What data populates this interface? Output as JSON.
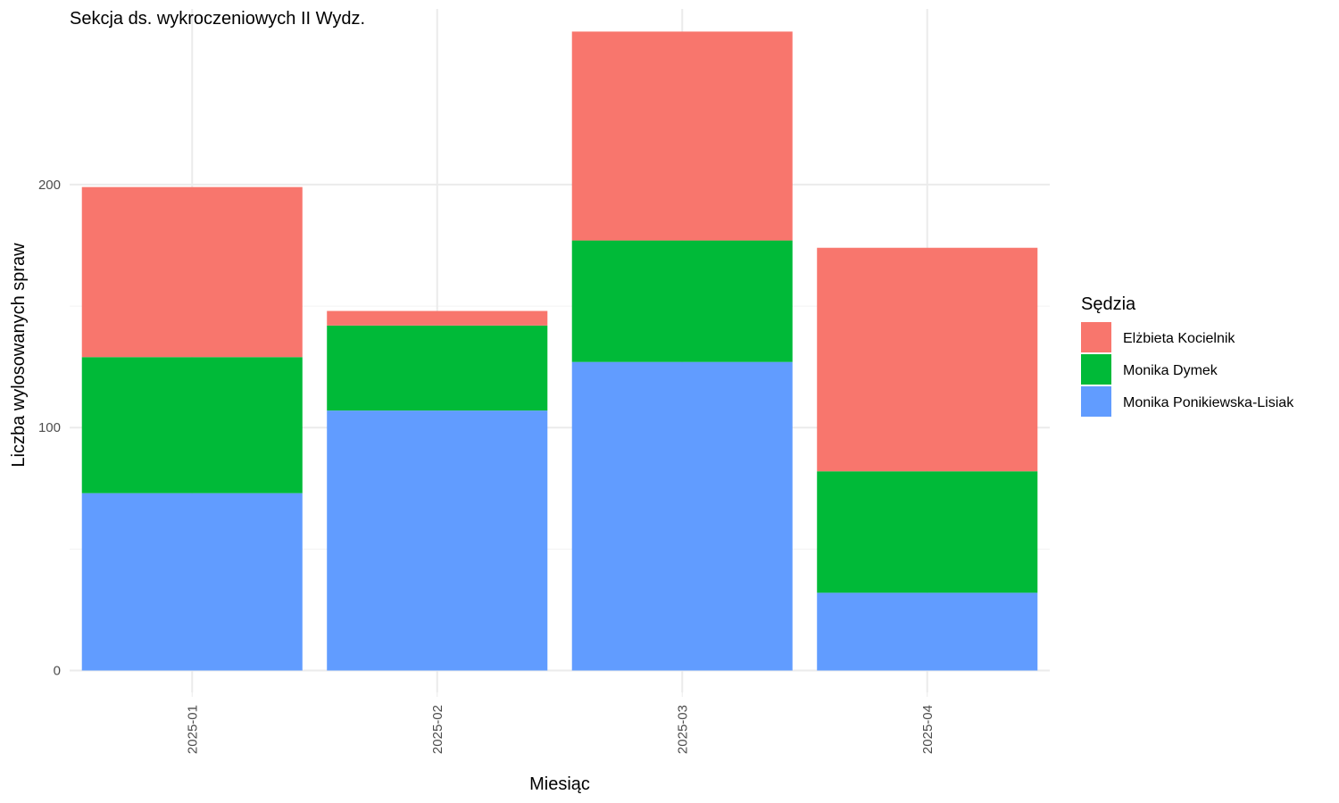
{
  "chart_data": {
    "type": "bar",
    "stacked": true,
    "title": "Sekcja ds. wykroczeniowych II Wydz.",
    "xlabel": "Miesiąc",
    "ylabel": "Liczba wylosowanych spraw",
    "categories": [
      "2025-01",
      "2025-02",
      "2025-03",
      "2025-04"
    ],
    "ylim": [
      -9,
      276
    ],
    "yticks": [
      0,
      100,
      200
    ],
    "ytick_labels": [
      "0",
      "100",
      "200"
    ],
    "grid": true,
    "legend_title": "Sędzia",
    "legend_position": "right",
    "series": [
      {
        "name": "Monika Ponikiewska-Lisiak",
        "color": "#619CFF",
        "values": [
          73,
          107,
          127,
          32
        ]
      },
      {
        "name": "Monika Dymek",
        "color": "#00BA38",
        "values": [
          56,
          35,
          50,
          50
        ]
      },
      {
        "name": "Elżbieta Kocielnik",
        "color": "#F8766D",
        "values": [
          70,
          6,
          86,
          92
        ]
      }
    ],
    "legend_order": [
      2,
      1,
      0
    ]
  }
}
